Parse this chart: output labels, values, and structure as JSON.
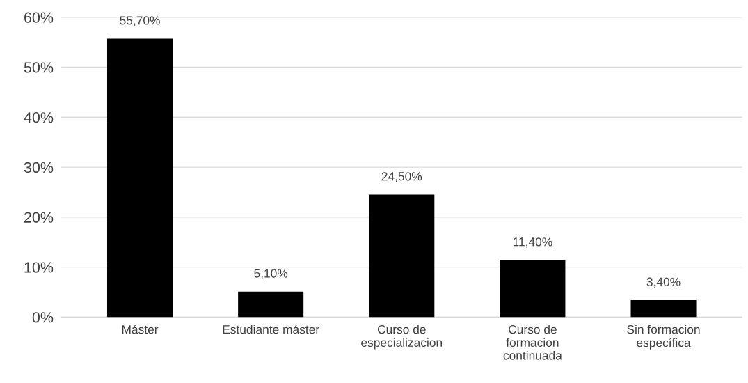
{
  "chart_data": {
    "type": "bar",
    "categories": [
      "Máster",
      "Estudiante máster",
      "Curso de\nespecializacion",
      "Curso de\nformacion\ncontinuada",
      "Sin formacion\nespecífica"
    ],
    "values": [
      55.7,
      5.1,
      24.5,
      11.4,
      3.4
    ],
    "value_labels": [
      "55,70%",
      "5,10%",
      "24,50%",
      "11,40%",
      "3,40%"
    ],
    "color": "#000000",
    "ylim": [
      0,
      60
    ],
    "yticks": [
      {
        "value": 0,
        "label": "0%"
      },
      {
        "value": 10,
        "label": "10%"
      },
      {
        "value": 20,
        "label": "20%"
      },
      {
        "value": 30,
        "label": "30%"
      },
      {
        "value": 40,
        "label": "40%"
      },
      {
        "value": 50,
        "label": "50%"
      },
      {
        "value": 60,
        "label": "60%"
      }
    ],
    "grid": "y",
    "legend": false
  }
}
